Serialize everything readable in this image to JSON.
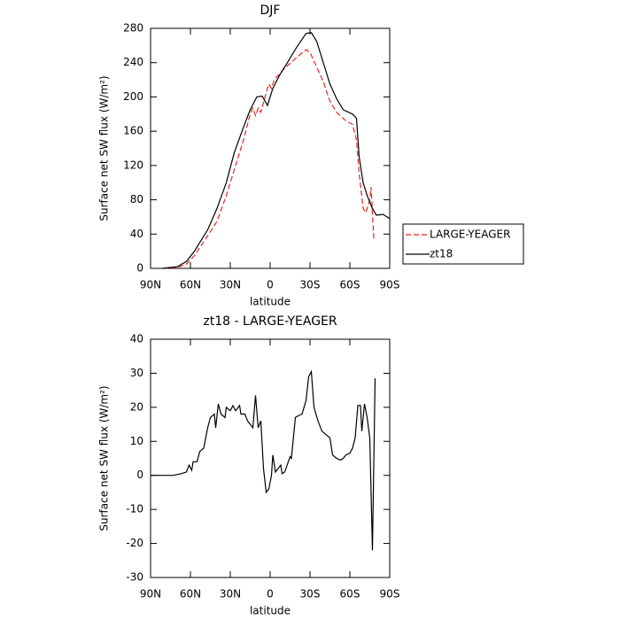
{
  "chart_data": [
    {
      "type": "line",
      "title": "DJF",
      "xlabel": "latitude",
      "ylabel": "Surface net SW flux (W/m²)",
      "xlim": [
        90,
        -90
      ],
      "xticks": [
        {
          "value": 90,
          "label": "90N"
        },
        {
          "value": 60,
          "label": "60N"
        },
        {
          "value": 30,
          "label": "30N"
        },
        0,
        {
          "value": -30,
          "label": "30S"
        },
        {
          "value": -60,
          "label": "60S"
        },
        {
          "value": -90,
          "label": "90S"
        }
      ],
      "ylim": [
        0,
        280
      ],
      "yticks": [
        0,
        40,
        80,
        120,
        160,
        200,
        240,
        280
      ],
      "legend": "outside-right",
      "series": [
        {
          "name": "LARGE-YEAGER",
          "color": "#e8251f",
          "linestyle": "dashed",
          "x": [
            81,
            70,
            63,
            57,
            47,
            40,
            33,
            27,
            20,
            15,
            13,
            11,
            9,
            7,
            3,
            1,
            -1,
            -3,
            -10,
            -17,
            -23,
            -27,
            -30,
            -35,
            -40,
            -45,
            -50,
            -57,
            -62,
            -65,
            -67,
            -70,
            -72,
            -75,
            -76,
            -78
          ],
          "values": [
            0,
            1,
            5,
            15,
            38,
            55,
            85,
            115,
            150,
            180,
            187,
            178,
            187,
            182,
            205,
            215,
            210,
            220,
            232,
            242,
            250,
            255,
            252,
            235,
            218,
            195,
            182,
            172,
            168,
            150,
            110,
            70,
            65,
            80,
            95,
            35
          ]
        },
        {
          "name": "zt18",
          "color": "#000000",
          "linestyle": "solid",
          "x": [
            81,
            70,
            63,
            57,
            47,
            40,
            33,
            27,
            20,
            15,
            10,
            6,
            2,
            -2,
            -7,
            -13,
            -20,
            -27,
            -31,
            -35,
            -40,
            -45,
            -50,
            -55,
            -62,
            -65,
            -67,
            -70,
            -73,
            -77,
            -80,
            -85,
            -90
          ],
          "values": [
            0,
            2,
            8,
            20,
            45,
            70,
            100,
            135,
            165,
            185,
            200,
            201,
            190,
            210,
            225,
            240,
            258,
            274,
            275,
            265,
            240,
            215,
            198,
            185,
            180,
            175,
            130,
            100,
            85,
            70,
            62,
            63,
            58
          ]
        }
      ]
    },
    {
      "type": "line",
      "title": "zt18 - LARGE-YEAGER",
      "xlabel": "latitude",
      "ylabel": "Surface net SW flux (W/m²)",
      "xlim": [
        90,
        -90
      ],
      "xticks": [
        {
          "value": 90,
          "label": "90N"
        },
        {
          "value": 60,
          "label": "60N"
        },
        {
          "value": 30,
          "label": "30N"
        },
        0,
        {
          "value": -30,
          "label": "30S"
        },
        {
          "value": -60,
          "label": "60S"
        },
        {
          "value": -90,
          "label": "90S"
        }
      ],
      "ylim": [
        -30,
        40
      ],
      "yticks": [
        -30,
        -20,
        -10,
        0,
        10,
        20,
        30,
        40
      ],
      "color": "#000000",
      "x": [
        90,
        73,
        67,
        63,
        61,
        59,
        58,
        55,
        53,
        50,
        47,
        45,
        42,
        41,
        39,
        37,
        34,
        33,
        30,
        28,
        26,
        23,
        22,
        19,
        17,
        13,
        11,
        9,
        7,
        5,
        3,
        1,
        -1,
        -2,
        -4,
        -6,
        -8,
        -9,
        -11,
        -15,
        -16,
        -19,
        -21,
        -24,
        -27,
        -29,
        -31,
        -33,
        -36,
        -39,
        -42,
        -45,
        -47,
        -50,
        -53,
        -55,
        -57,
        -60,
        -62,
        -64,
        -66,
        -68,
        -69,
        -71,
        -73,
        -75,
        -77,
        -79
      ],
      "values": [
        0,
        0,
        0.5,
        1,
        3,
        1.5,
        4,
        4,
        7,
        8,
        14,
        17,
        18,
        14,
        21,
        18,
        17,
        20,
        19,
        20.5,
        19,
        20.5,
        18,
        18,
        16,
        14,
        23.5,
        14,
        16,
        2,
        -5,
        -4,
        0,
        6,
        1,
        2,
        3,
        0.5,
        1,
        5.5,
        5,
        17,
        17.5,
        18,
        22,
        29,
        30.5,
        20,
        16,
        13,
        12,
        11,
        6,
        5,
        4.5,
        5,
        6,
        6.5,
        8,
        11,
        20.5,
        20.5,
        13,
        21,
        17,
        11,
        -22,
        28.5
      ]
    }
  ]
}
